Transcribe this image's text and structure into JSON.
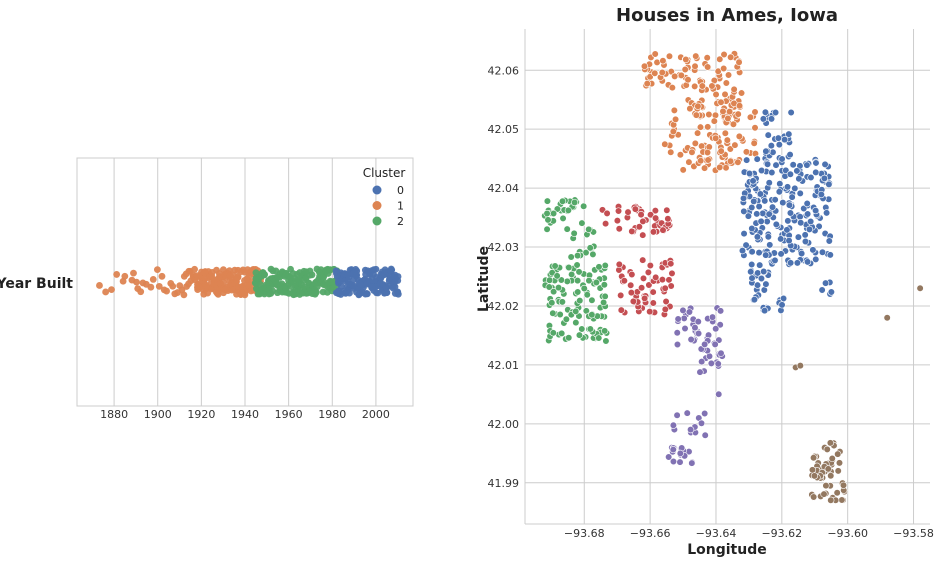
{
  "chart_data": [
    {
      "type": "strip",
      "title": "",
      "category_label": "Year Built",
      "xlabel": "",
      "xlim": [
        1863,
        2017
      ],
      "xticks": [
        1880,
        1900,
        1920,
        1940,
        1960,
        1980,
        2000
      ],
      "grid": true,
      "legend": {
        "title": "Cluster",
        "placement": "top-right",
        "entries": [
          {
            "label": "0",
            "color": "#4c72b0"
          },
          {
            "label": "1",
            "color": "#dd8452"
          },
          {
            "label": "2",
            "color": "#55a868"
          }
        ]
      },
      "series": [
        {
          "cluster": "0",
          "color": "#4c72b0",
          "range": [
            1982,
            2010
          ]
        },
        {
          "cluster": "1",
          "color": "#dd8452",
          "range": [
            1872,
            1947
          ]
        },
        {
          "cluster": "2",
          "color": "#55a868",
          "range": [
            1945,
            1982
          ]
        }
      ]
    },
    {
      "type": "scatter",
      "title": "Houses in Ames, Iowa",
      "xlabel": "Longitude",
      "ylabel": "Latitude",
      "xlim": [
        -93.698,
        -93.575
      ],
      "ylim": [
        41.983,
        42.067
      ],
      "xticks": [
        -93.68,
        -93.66,
        -93.64,
        -93.62,
        -93.6,
        -93.58
      ],
      "xtick_labels": [
        "−93.68",
        "−93.66",
        "−93.64",
        "−93.62",
        "−93.60",
        "−93.58"
      ],
      "yticks": [
        41.99,
        42.0,
        42.01,
        42.02,
        42.03,
        42.04,
        42.05,
        42.06
      ],
      "ytick_labels": [
        "41.99",
        "42.00",
        "42.01",
        "42.02",
        "42.03",
        "42.04",
        "42.05",
        "42.06"
      ],
      "grid": true,
      "series": [
        {
          "color": "#dd8452",
          "regions": [
            {
              "lon": [
                -93.662,
                -93.648
              ],
              "lat": [
                42.057,
                42.063
              ],
              "n": 40
            },
            {
              "lon": [
                -93.647,
                -93.632
              ],
              "lat": [
                42.052,
                42.063
              ],
              "n": 70
            },
            {
              "lon": [
                -93.656,
                -93.628
              ],
              "lat": [
                42.044,
                42.055
              ],
              "n": 80
            },
            {
              "lon": [
                -93.65,
                -93.64
              ],
              "lat": [
                42.043,
                42.048
              ],
              "n": 15
            },
            {
              "lon": [
                -93.64,
                -93.633
              ],
              "lat": [
                42.043,
                42.047
              ],
              "n": 10
            }
          ]
        },
        {
          "color": "#4c72b0",
          "regions": [
            {
              "lon": [
                -93.626,
                -93.617
              ],
              "lat": [
                42.045,
                42.054
              ],
              "n": 30
            },
            {
              "lon": [
                -93.632,
                -93.605
              ],
              "lat": [
                42.027,
                42.045
              ],
              "n": 220
            },
            {
              "lon": [
                -93.63,
                -93.624
              ],
              "lat": [
                42.019,
                42.027
              ],
              "n": 25
            },
            {
              "lon": [
                -93.621,
                -93.617
              ],
              "lat": [
                42.019,
                42.022
              ],
              "n": 6
            },
            {
              "lon": [
                -93.608,
                -93.603
              ],
              "lat": [
                42.022,
                42.024
              ],
              "n": 5
            }
          ]
        },
        {
          "color": "#55a868",
          "regions": [
            {
              "lon": [
                -93.692,
                -93.68
              ],
              "lat": [
                42.033,
                42.038
              ],
              "n": 30
            },
            {
              "lon": [
                -93.684,
                -93.676
              ],
              "lat": [
                42.028,
                42.033
              ],
              "n": 15
            },
            {
              "lon": [
                -93.692,
                -93.673
              ],
              "lat": [
                42.014,
                42.027
              ],
              "n": 110
            }
          ]
        },
        {
          "color": "#c44e52",
          "regions": [
            {
              "lon": [
                -93.675,
                -93.654
              ],
              "lat": [
                42.032,
                42.037
              ],
              "n": 45
            },
            {
              "lon": [
                -93.67,
                -93.653
              ],
              "lat": [
                42.018,
                42.028
              ],
              "n": 60
            }
          ]
        },
        {
          "color": "#8172b3",
          "regions": [
            {
              "lon": [
                -93.652,
                -93.638
              ],
              "lat": [
                42.011,
                42.02
              ],
              "n": 45
            },
            {
              "lon": [
                -93.645,
                -93.639
              ],
              "lat": [
                42.005,
                42.011
              ],
              "n": 8
            },
            {
              "lon": [
                -93.653,
                -93.643
              ],
              "lat": [
                41.998,
                42.002
              ],
              "n": 12
            },
            {
              "lon": [
                -93.655,
                -93.647
              ],
              "lat": [
                41.993,
                41.996
              ],
              "n": 18
            }
          ]
        },
        {
          "color": "#937860",
          "regions": [
            {
              "lon": [
                -93.611,
                -93.601
              ],
              "lat": [
                41.987,
                41.997
              ],
              "n": 55
            },
            {
              "lon": [
                -93.616,
                -93.614
              ],
              "lat": [
                42.009,
                42.01
              ],
              "n": 3
            }
          ],
          "points": [
            [
              -93.588,
              42.018
            ],
            [
              -93.578,
              42.023
            ]
          ]
        }
      ]
    }
  ]
}
